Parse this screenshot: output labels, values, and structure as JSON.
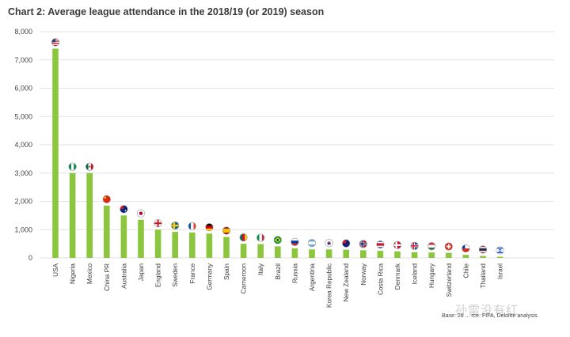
{
  "chart_data": {
    "type": "bar",
    "title": "Chart 2: Average league attendance in the 2018/19 (or 2019) season",
    "xlabel": "",
    "ylabel": "",
    "ylim": [
      0,
      8000
    ],
    "yticks": [
      0,
      1000,
      2000,
      3000,
      4000,
      5000,
      6000,
      7000,
      8000
    ],
    "ytick_labels": [
      "0",
      "1,000",
      "2,000",
      "3,000",
      "4,000",
      "5,000",
      "6,000",
      "7,000",
      "8,000"
    ],
    "grid": true,
    "bar_color": "#8cc63f",
    "grid_color": "#e2e2e2",
    "categories": [
      "USA",
      "Nigeria",
      "Mexico",
      "China PR",
      "Australia",
      "Japan",
      "England",
      "Sweden",
      "France",
      "Germany",
      "Spain",
      "Cameroon",
      "Italy",
      "Brazil",
      "Russia",
      "Argentina",
      "Korea Republic",
      "New Zealand",
      "Norway",
      "Costa Rica",
      "Denmark",
      "Iceland",
      "Hungary",
      "Switzerland",
      "Chile",
      "Thailand",
      "Israel"
    ],
    "values": [
      7400,
      3000,
      3000,
      1850,
      1500,
      1350,
      1000,
      920,
      900,
      860,
      740,
      500,
      490,
      410,
      340,
      300,
      300,
      290,
      270,
      250,
      230,
      200,
      190,
      180,
      110,
      70,
      40
    ],
    "flags": [
      "flag-usa",
      "flag-nigeria",
      "flag-mexico",
      "flag-china",
      "flag-australia",
      "flag-japan",
      "flag-england",
      "flag-sweden",
      "flag-france",
      "flag-germany",
      "flag-spain",
      "flag-cameroon",
      "flag-italy",
      "flag-brazil",
      "flag-russia",
      "flag-argentina",
      "flag-korea-republic",
      "flag-new-zealand",
      "flag-norway",
      "flag-costa-rica",
      "flag-denmark",
      "flag-iceland",
      "flag-hungary",
      "flag-switzerland",
      "flag-chile",
      "flag-thailand",
      "flag-israel"
    ]
  },
  "footnote": "Base: 28 ... rce: FIFA, Deloitte analysis.",
  "watermark": "孙雷没有红"
}
